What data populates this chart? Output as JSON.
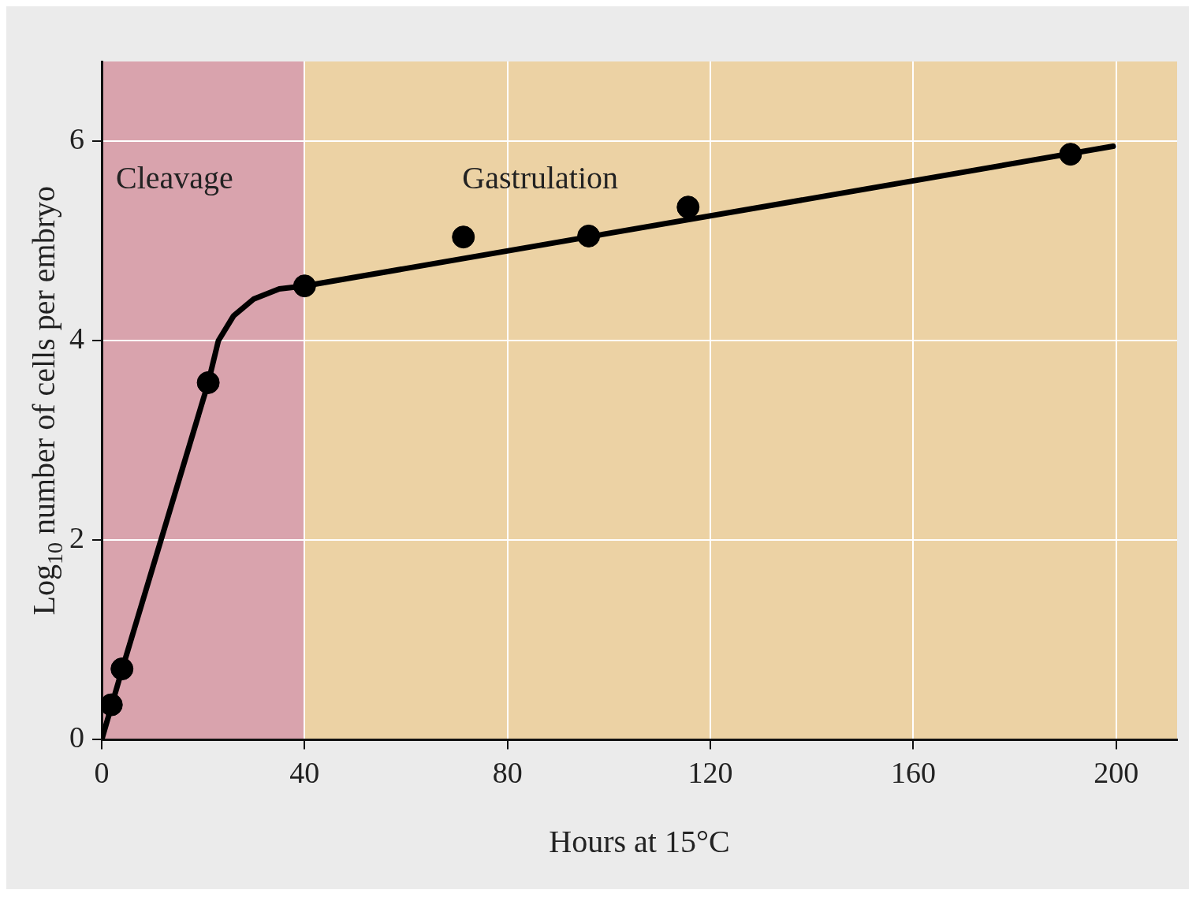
{
  "chart_data": {
    "type": "scatter",
    "xlabel": "Hours at 15°C",
    "ylabel": "Log$_{10}$ number of cells per embryo",
    "xlim": [
      0,
      212
    ],
    "ylim": [
      0,
      6.8
    ],
    "xticks": [
      0,
      40,
      80,
      120,
      160,
      200
    ],
    "yticks": [
      0,
      2,
      4,
      6
    ],
    "grid": true,
    "legend": false,
    "bands": [
      {
        "axis": "x",
        "from": 0,
        "to": 40,
        "label": "Cleavage",
        "color": "#d9a3ad"
      },
      {
        "axis": "x",
        "from": 40,
        "to": 212,
        "label": "Gastrulation",
        "color": "#ecd2a4"
      }
    ],
    "series": [
      {
        "color": "#000000",
        "marker": "circle",
        "x": [
          1.9,
          4,
          21,
          40,
          71.3,
          96,
          115.6,
          191
        ],
        "values": [
          0.35,
          0.71,
          3.58,
          4.55,
          5.04,
          5.05,
          5.34,
          5.87
        ]
      },
      {
        "type": "line",
        "color": "#000000",
        "line_style": "solid",
        "x": [
          0,
          4,
          21,
          23,
          26,
          30,
          35,
          40,
          199.4
        ],
        "values": [
          0,
          0.7,
          3.58,
          4,
          4.25,
          4.42,
          4.52,
          4.55,
          5.95
        ]
      }
    ]
  }
}
